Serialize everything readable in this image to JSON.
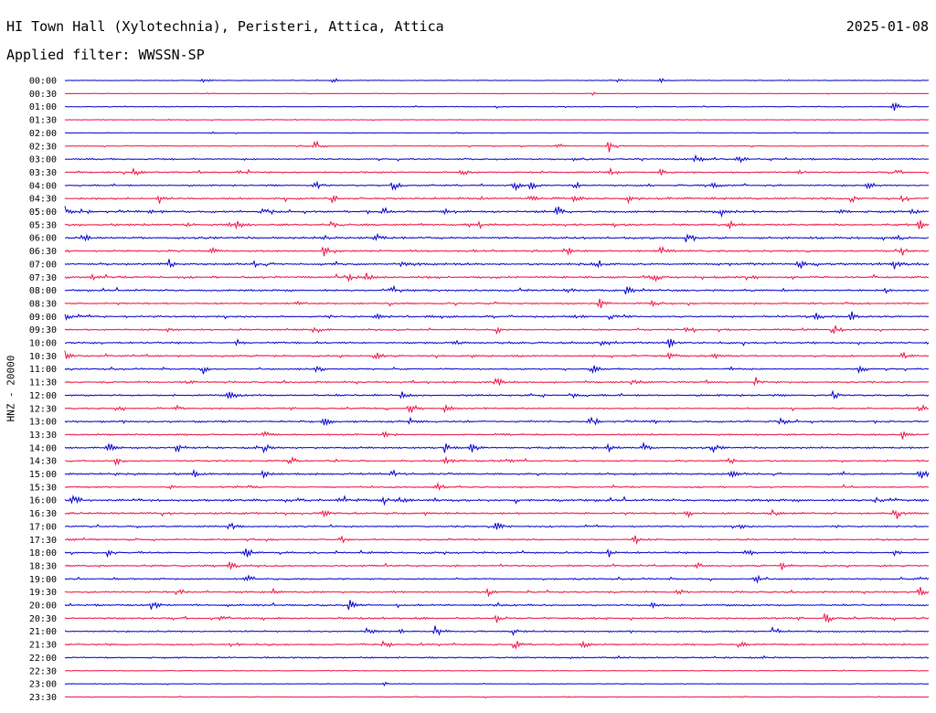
{
  "header": {
    "station": "HI Town Hall (Xylotechnia), Peristeri, Attica, Attica",
    "date": "2025-01-08",
    "filter_label": "Applied filter: WWSSN-SP"
  },
  "chart_data": {
    "type": "line",
    "title": "HI Town Hall (Xylotechnia), Peristeri, Attica, Attica",
    "ylabel": "HNZ - 20000",
    "xlabel": "",
    "colors": {
      "even": "#0000cc",
      "odd": "#ee1144"
    },
    "grid": false,
    "rows": [
      {
        "time": "00:00",
        "noise": 0.4,
        "events": [
          {
            "t": 0.16,
            "a": 3
          },
          {
            "t": 0.31,
            "a": 2
          },
          {
            "t": 0.64,
            "a": 2
          },
          {
            "t": 0.69,
            "a": 2
          }
        ]
      },
      {
        "time": "00:30",
        "noise": 0.4,
        "events": [
          {
            "t": 0.17,
            "a": 1
          },
          {
            "t": 0.61,
            "a": 2
          }
        ]
      },
      {
        "time": "01:00",
        "noise": 0.5,
        "events": [
          {
            "t": 0.96,
            "a": 6
          },
          {
            "t": 0.5,
            "a": 1
          }
        ]
      },
      {
        "time": "01:30",
        "noise": 0.4,
        "events": [
          {
            "t": 0.23,
            "a": 1
          },
          {
            "t": 0.47,
            "a": 1
          }
        ]
      },
      {
        "time": "02:00",
        "noise": 0.4,
        "events": [
          {
            "t": 0.17,
            "a": 1
          },
          {
            "t": 0.45,
            "a": 1
          }
        ]
      },
      {
        "time": "02:30",
        "noise": 0.6,
        "events": [
          {
            "t": 0.29,
            "a": 7
          },
          {
            "t": 0.63,
            "a": 7
          },
          {
            "t": 0.57,
            "a": 2
          },
          {
            "t": 0.27,
            "a": 2
          }
        ]
      },
      {
        "time": "03:00",
        "noise": 1.0,
        "events": [
          {
            "t": 0.73,
            "a": 6
          },
          {
            "t": 0.78,
            "a": 5
          },
          {
            "t": 0.28,
            "a": 2
          },
          {
            "t": 0.59,
            "a": 2
          }
        ]
      },
      {
        "time": "03:30",
        "noise": 1.0,
        "events": [
          {
            "t": 0.08,
            "a": 5
          },
          {
            "t": 0.2,
            "a": 5
          },
          {
            "t": 0.46,
            "a": 5
          },
          {
            "t": 0.63,
            "a": 5
          },
          {
            "t": 0.69,
            "a": 5
          },
          {
            "t": 0.85,
            "a": 4
          },
          {
            "t": 0.55,
            "a": 3
          },
          {
            "t": 0.96,
            "a": 3
          }
        ]
      },
      {
        "time": "04:00",
        "noise": 1.0,
        "events": [
          {
            "t": 0.29,
            "a": 5
          },
          {
            "t": 0.38,
            "a": 6
          },
          {
            "t": 0.52,
            "a": 6
          },
          {
            "t": 0.54,
            "a": 5
          },
          {
            "t": 0.59,
            "a": 4
          },
          {
            "t": 0.75,
            "a": 3
          },
          {
            "t": 0.93,
            "a": 4
          }
        ]
      },
      {
        "time": "04:30",
        "noise": 1.3,
        "events": [
          {
            "t": 0.11,
            "a": 5
          },
          {
            "t": 0.31,
            "a": 4
          },
          {
            "t": 0.54,
            "a": 5
          },
          {
            "t": 0.65,
            "a": 6
          },
          {
            "t": 0.59,
            "a": 3
          },
          {
            "t": 0.91,
            "a": 5
          },
          {
            "t": 0.97,
            "a": 4
          }
        ]
      },
      {
        "time": "05:00",
        "noise": 1.4,
        "events": [
          {
            "t": 0.0,
            "a": 6
          },
          {
            "t": 0.1,
            "a": 5
          },
          {
            "t": 0.23,
            "a": 4
          },
          {
            "t": 0.37,
            "a": 4
          },
          {
            "t": 0.44,
            "a": 4
          },
          {
            "t": 0.57,
            "a": 6
          },
          {
            "t": 0.76,
            "a": 6
          },
          {
            "t": 0.9,
            "a": 4
          },
          {
            "t": 0.98,
            "a": 4
          }
        ]
      },
      {
        "time": "05:30",
        "noise": 1.3,
        "events": [
          {
            "t": 0.19,
            "a": 5
          },
          {
            "t": 0.2,
            "a": 5
          },
          {
            "t": 0.31,
            "a": 5
          },
          {
            "t": 0.14,
            "a": 3
          },
          {
            "t": 0.48,
            "a": 3
          },
          {
            "t": 0.77,
            "a": 4
          },
          {
            "t": 0.99,
            "a": 5
          }
        ]
      },
      {
        "time": "06:00",
        "noise": 1.3,
        "events": [
          {
            "t": 0.02,
            "a": 5
          },
          {
            "t": 0.3,
            "a": 5
          },
          {
            "t": 0.36,
            "a": 5
          },
          {
            "t": 0.72,
            "a": 5
          },
          {
            "t": 0.96,
            "a": 6
          }
        ]
      },
      {
        "time": "06:30",
        "noise": 1.3,
        "events": [
          {
            "t": 0.3,
            "a": 6
          },
          {
            "t": 0.58,
            "a": 6
          },
          {
            "t": 0.69,
            "a": 5
          },
          {
            "t": 0.97,
            "a": 6
          },
          {
            "t": 0.17,
            "a": 3
          }
        ]
      },
      {
        "time": "07:00",
        "noise": 1.4,
        "events": [
          {
            "t": 0.12,
            "a": 6
          },
          {
            "t": 0.22,
            "a": 5
          },
          {
            "t": 0.39,
            "a": 5
          },
          {
            "t": 0.62,
            "a": 5
          },
          {
            "t": 0.85,
            "a": 6
          },
          {
            "t": 0.96,
            "a": 6
          }
        ]
      },
      {
        "time": "07:30",
        "noise": 1.3,
        "events": [
          {
            "t": 0.03,
            "a": 4
          },
          {
            "t": 0.33,
            "a": 5
          },
          {
            "t": 0.35,
            "a": 5
          },
          {
            "t": 0.68,
            "a": 6
          },
          {
            "t": 0.79,
            "a": 5
          }
        ]
      },
      {
        "time": "08:00",
        "noise": 1.2,
        "events": [
          {
            "t": 0.38,
            "a": 6
          },
          {
            "t": 0.65,
            "a": 6
          },
          {
            "t": 0.58,
            "a": 3
          },
          {
            "t": 0.95,
            "a": 3
          }
        ]
      },
      {
        "time": "08:30",
        "noise": 1.1,
        "events": [
          {
            "t": 0.62,
            "a": 6
          },
          {
            "t": 0.27,
            "a": 2
          },
          {
            "t": 0.68,
            "a": 3
          }
        ]
      },
      {
        "time": "09:00",
        "noise": 1.2,
        "events": [
          {
            "t": 0.0,
            "a": 5
          },
          {
            "t": 0.36,
            "a": 3
          },
          {
            "t": 0.59,
            "a": 3
          },
          {
            "t": 0.63,
            "a": 4
          },
          {
            "t": 0.87,
            "a": 4
          },
          {
            "t": 0.91,
            "a": 6
          }
        ]
      },
      {
        "time": "09:30",
        "noise": 1.1,
        "events": [
          {
            "t": 0.29,
            "a": 5
          },
          {
            "t": 0.72,
            "a": 5
          },
          {
            "t": 0.89,
            "a": 6
          },
          {
            "t": 0.12,
            "a": 3
          },
          {
            "t": 0.5,
            "a": 3
          }
        ]
      },
      {
        "time": "10:00",
        "noise": 1.2,
        "events": [
          {
            "t": 0.62,
            "a": 6
          },
          {
            "t": 0.7,
            "a": 5
          },
          {
            "t": 0.2,
            "a": 3
          },
          {
            "t": 0.45,
            "a": 3
          }
        ]
      },
      {
        "time": "10:30",
        "noise": 1.2,
        "events": [
          {
            "t": 0.0,
            "a": 6
          },
          {
            "t": 0.36,
            "a": 4
          },
          {
            "t": 0.7,
            "a": 4
          },
          {
            "t": 0.75,
            "a": 4
          },
          {
            "t": 0.97,
            "a": 4
          }
        ]
      },
      {
        "time": "11:00",
        "noise": 1.0,
        "events": [
          {
            "t": 0.16,
            "a": 4
          },
          {
            "t": 0.29,
            "a": 5
          },
          {
            "t": 0.61,
            "a": 6
          },
          {
            "t": 0.92,
            "a": 6
          },
          {
            "t": 0.77,
            "a": 3
          }
        ]
      },
      {
        "time": "11:30",
        "noise": 1.1,
        "events": [
          {
            "t": 0.14,
            "a": 4
          },
          {
            "t": 0.5,
            "a": 6
          },
          {
            "t": 0.66,
            "a": 5
          },
          {
            "t": 0.8,
            "a": 3
          }
        ]
      },
      {
        "time": "12:00",
        "noise": 1.2,
        "events": [
          {
            "t": 0.19,
            "a": 6
          },
          {
            "t": 0.39,
            "a": 4
          },
          {
            "t": 0.59,
            "a": 4
          },
          {
            "t": 0.89,
            "a": 5
          }
        ]
      },
      {
        "time": "12:30",
        "noise": 1.0,
        "events": [
          {
            "t": 0.4,
            "a": 6
          },
          {
            "t": 0.44,
            "a": 6
          },
          {
            "t": 0.99,
            "a": 6
          },
          {
            "t": 0.06,
            "a": 3
          },
          {
            "t": 0.13,
            "a": 3
          }
        ]
      },
      {
        "time": "13:00",
        "noise": 1.2,
        "events": [
          {
            "t": 0.3,
            "a": 5
          },
          {
            "t": 0.4,
            "a": 4
          },
          {
            "t": 0.61,
            "a": 5
          },
          {
            "t": 0.68,
            "a": 4
          },
          {
            "t": 0.83,
            "a": 4
          }
        ]
      },
      {
        "time": "13:30",
        "noise": 1.1,
        "events": [
          {
            "t": 0.23,
            "a": 5
          },
          {
            "t": 0.37,
            "a": 4
          },
          {
            "t": 0.5,
            "a": 4
          },
          {
            "t": 0.97,
            "a": 5
          }
        ]
      },
      {
        "time": "14:00",
        "noise": 1.1,
        "events": [
          {
            "t": 0.05,
            "a": 5
          },
          {
            "t": 0.13,
            "a": 6
          },
          {
            "t": 0.23,
            "a": 5
          },
          {
            "t": 0.44,
            "a": 6
          },
          {
            "t": 0.47,
            "a": 6
          },
          {
            "t": 0.63,
            "a": 5
          },
          {
            "t": 0.67,
            "a": 5
          },
          {
            "t": 0.75,
            "a": 5
          }
        ]
      },
      {
        "time": "14:30",
        "noise": 1.1,
        "events": [
          {
            "t": 0.06,
            "a": 5
          },
          {
            "t": 0.26,
            "a": 5
          },
          {
            "t": 0.44,
            "a": 4
          },
          {
            "t": 0.51,
            "a": 4
          },
          {
            "t": 0.77,
            "a": 4
          }
        ]
      },
      {
        "time": "15:00",
        "noise": 1.3,
        "events": [
          {
            "t": 0.15,
            "a": 4
          },
          {
            "t": 0.23,
            "a": 5
          },
          {
            "t": 0.38,
            "a": 4
          },
          {
            "t": 0.77,
            "a": 5
          },
          {
            "t": 0.99,
            "a": 6
          }
        ]
      },
      {
        "time": "15:30",
        "noise": 1.0,
        "events": [
          {
            "t": 0.21,
            "a": 5
          },
          {
            "t": 0.43,
            "a": 6
          },
          {
            "t": 0.12,
            "a": 3
          }
        ]
      },
      {
        "time": "16:00",
        "noise": 1.5,
        "events": [
          {
            "t": 0.01,
            "a": 6
          },
          {
            "t": 0.32,
            "a": 5
          },
          {
            "t": 0.37,
            "a": 5
          },
          {
            "t": 0.39,
            "a": 4
          },
          {
            "t": 0.94,
            "a": 6
          }
        ]
      },
      {
        "time": "16:30",
        "noise": 1.3,
        "events": [
          {
            "t": 0.72,
            "a": 5
          },
          {
            "t": 0.82,
            "a": 4
          },
          {
            "t": 0.96,
            "a": 6
          },
          {
            "t": 0.3,
            "a": 3
          }
        ]
      },
      {
        "time": "17:00",
        "noise": 1.0,
        "events": [
          {
            "t": 0.19,
            "a": 6
          },
          {
            "t": 0.5,
            "a": 5
          },
          {
            "t": 0.78,
            "a": 4
          }
        ]
      },
      {
        "time": "17:30",
        "noise": 1.1,
        "events": [
          {
            "t": 0.32,
            "a": 4
          },
          {
            "t": 0.66,
            "a": 5
          },
          {
            "t": 0.21,
            "a": 3
          }
        ]
      },
      {
        "time": "18:00",
        "noise": 1.2,
        "events": [
          {
            "t": 0.05,
            "a": 4
          },
          {
            "t": 0.21,
            "a": 6
          },
          {
            "t": 0.63,
            "a": 6
          },
          {
            "t": 0.79,
            "a": 5
          },
          {
            "t": 0.96,
            "a": 4
          }
        ]
      },
      {
        "time": "18:30",
        "noise": 1.1,
        "events": [
          {
            "t": 0.19,
            "a": 6
          },
          {
            "t": 0.73,
            "a": 5
          },
          {
            "t": 0.83,
            "a": 4
          }
        ]
      },
      {
        "time": "19:00",
        "noise": 1.0,
        "events": [
          {
            "t": 0.21,
            "a": 5
          },
          {
            "t": 0.8,
            "a": 5
          },
          {
            "t": 0.99,
            "a": 4
          }
        ]
      },
      {
        "time": "19:30",
        "noise": 1.1,
        "events": [
          {
            "t": 0.13,
            "a": 5
          },
          {
            "t": 0.24,
            "a": 5
          },
          {
            "t": 0.49,
            "a": 4
          },
          {
            "t": 0.71,
            "a": 4
          },
          {
            "t": 0.99,
            "a": 5
          }
        ]
      },
      {
        "time": "20:00",
        "noise": 1.1,
        "events": [
          {
            "t": 0.1,
            "a": 6
          },
          {
            "t": 0.33,
            "a": 5
          },
          {
            "t": 0.68,
            "a": 6
          },
          {
            "t": 0.5,
            "a": 3
          }
        ]
      },
      {
        "time": "20:30",
        "noise": 1.2,
        "events": [
          {
            "t": 0.18,
            "a": 5
          },
          {
            "t": 0.5,
            "a": 5
          },
          {
            "t": 0.88,
            "a": 6
          }
        ]
      },
      {
        "time": "21:00",
        "noise": 1.0,
        "events": [
          {
            "t": 0.35,
            "a": 5
          },
          {
            "t": 0.39,
            "a": 5
          },
          {
            "t": 0.43,
            "a": 6
          },
          {
            "t": 0.52,
            "a": 5
          },
          {
            "t": 0.82,
            "a": 6
          }
        ]
      },
      {
        "time": "21:30",
        "noise": 1.1,
        "events": [
          {
            "t": 0.37,
            "a": 5
          },
          {
            "t": 0.52,
            "a": 6
          },
          {
            "t": 0.6,
            "a": 5
          },
          {
            "t": 0.78,
            "a": 5
          }
        ]
      },
      {
        "time": "22:00",
        "noise": 1.0,
        "events": []
      },
      {
        "time": "22:30",
        "noise": 0.5,
        "events": []
      },
      {
        "time": "23:00",
        "noise": 0.5,
        "events": [
          {
            "t": 0.37,
            "a": 2
          }
        ]
      },
      {
        "time": "23:30",
        "noise": 0.6,
        "events": []
      }
    ]
  }
}
